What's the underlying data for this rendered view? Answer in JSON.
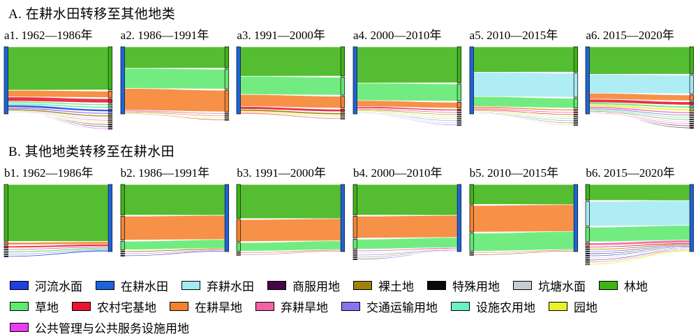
{
  "figure": {
    "section_a": {
      "title": "A. 在耕水田转移至其他地类"
    },
    "section_b": {
      "title": "B. 其他地类转移至在耕水田"
    },
    "legend": {
      "rows": [
        [
          {
            "label": "河流水面",
            "color": "#1F3FDE"
          },
          {
            "label": "在耕水田",
            "color": "#1C64D9"
          },
          {
            "label": "弃耕水田",
            "color": "#A4EAF2"
          },
          {
            "label": "商服用地",
            "color": "#470549"
          },
          {
            "label": "裸土地",
            "color": "#9C8208"
          },
          {
            "label": "特殊用地",
            "color": "#0A0A0A"
          },
          {
            "label": "坑塘水面",
            "color": "#C8CDD2"
          },
          {
            "label": "林地",
            "color": "#3CB414"
          }
        ],
        [
          {
            "label": "草地",
            "color": "#5FE96E"
          },
          {
            "label": "农村宅基地",
            "color": "#E91430"
          },
          {
            "label": "在耕旱地",
            "color": "#F5822D"
          },
          {
            "label": "弃耕旱地",
            "color": "#F263A3"
          },
          {
            "label": "交通运输用地",
            "color": "#8973F2"
          },
          {
            "label": "设施农用地",
            "color": "#69F0C3"
          },
          {
            "label": "园地",
            "color": "#E9F227"
          }
        ],
        [
          {
            "label": "公共管理与公共服务设施用地",
            "color": "#E93DF0"
          }
        ]
      ]
    }
  },
  "chart_data": [
    {
      "id": "a1",
      "type": "sankey",
      "title": "a1. 1962—1986年",
      "direction": "paddy_to_others",
      "source": "在耕水田",
      "unit": "percent_of_transfer",
      "flows": [
        {
          "target": "林地",
          "value": 65
        },
        {
          "target": "在耕旱地",
          "value": 10
        },
        {
          "target": "农村宅基地",
          "value": 6.5
        },
        {
          "target": "草地",
          "value": 2.5
        },
        {
          "target": "设施农用地",
          "value": 3
        },
        {
          "target": "河流水面",
          "value": 3.5
        },
        {
          "target": "交通运输用地",
          "value": 2.5
        },
        {
          "target": "裸土地",
          "value": 2.5
        },
        {
          "target": "坑塘水面",
          "value": 1.5
        },
        {
          "target": "弃耕旱地",
          "value": 1
        },
        {
          "target": "园地",
          "value": 0.8
        },
        {
          "target": "商服用地",
          "value": 0.6
        },
        {
          "target": "特殊用地",
          "value": 0.6
        },
        {
          "target": "公共管理与公共服务设施用地",
          "value": 0.5
        }
      ]
    },
    {
      "id": "a2",
      "type": "sankey",
      "title": "a2. 1986—1991年",
      "direction": "paddy_to_others",
      "source": "在耕水田",
      "unit": "percent_of_transfer",
      "flows": [
        {
          "target": "林地",
          "value": 32
        },
        {
          "target": "草地",
          "value": 30
        },
        {
          "target": "在耕旱地",
          "value": 32.5
        },
        {
          "target": "弃耕旱地",
          "value": 2
        },
        {
          "target": "裸土地",
          "value": 1.5
        },
        {
          "target": "园地",
          "value": 1
        },
        {
          "target": "农村宅基地",
          "value": 1
        }
      ]
    },
    {
      "id": "a3",
      "type": "sankey",
      "title": "a3. 1991—2000年",
      "direction": "paddy_to_others",
      "source": "在耕水田",
      "unit": "percent_of_transfer",
      "flows": [
        {
          "target": "林地",
          "value": 44
        },
        {
          "target": "草地",
          "value": 27
        },
        {
          "target": "在耕旱地",
          "value": 18
        },
        {
          "target": "农村宅基地",
          "value": 4
        },
        {
          "target": "裸土地",
          "value": 3
        },
        {
          "target": "园地",
          "value": 2
        },
        {
          "target": "弃耕旱地",
          "value": 2
        }
      ]
    },
    {
      "id": "a4",
      "type": "sankey",
      "title": "a4. 2000—2010年",
      "direction": "paddy_to_others",
      "source": "在耕水田",
      "unit": "percent_of_transfer",
      "flows": [
        {
          "target": "林地",
          "value": 54
        },
        {
          "target": "草地",
          "value": 26
        },
        {
          "target": "在耕旱地",
          "value": 9
        },
        {
          "target": "农村宅基地",
          "value": 2.5
        },
        {
          "target": "弃耕旱地",
          "value": 2
        },
        {
          "target": "裸土地",
          "value": 1.5
        },
        {
          "target": "园地",
          "value": 1.5
        },
        {
          "target": "坑塘水面",
          "value": 1
        },
        {
          "target": "交通运输用地",
          "value": 1
        },
        {
          "target": "设施农用地",
          "value": 0.8
        },
        {
          "target": "公共管理与公共服务设施用地",
          "value": 0.7
        }
      ]
    },
    {
      "id": "a5",
      "type": "sankey",
      "title": "a5. 2010—2015年",
      "direction": "paddy_to_others",
      "source": "在耕水田",
      "unit": "percent_of_transfer",
      "flows": [
        {
          "target": "林地",
          "value": 38
        },
        {
          "target": "弃耕水田",
          "value": 36
        },
        {
          "target": "草地",
          "value": 15
        },
        {
          "target": "在耕旱地",
          "value": 2.5
        },
        {
          "target": "弃耕旱地",
          "value": 2
        },
        {
          "target": "农村宅基地",
          "value": 1.5
        },
        {
          "target": "园地",
          "value": 1.5
        },
        {
          "target": "设施农用地",
          "value": 1
        },
        {
          "target": "交通运输用地",
          "value": 1
        },
        {
          "target": "裸土地",
          "value": 0.8
        },
        {
          "target": "坑塘水面",
          "value": 0.7
        }
      ]
    },
    {
      "id": "a6",
      "type": "sankey",
      "title": "a6. 2015—2020年",
      "direction": "paddy_to_others",
      "source": "在耕水田",
      "unit": "percent_of_transfer",
      "flows": [
        {
          "target": "林地",
          "value": 41
        },
        {
          "target": "弃耕水田",
          "value": 28
        },
        {
          "target": "在耕旱地",
          "value": 9
        },
        {
          "target": "农村宅基地",
          "value": 5
        },
        {
          "target": "草地",
          "value": 3
        },
        {
          "target": "园地",
          "value": 3
        },
        {
          "target": "弃耕旱地",
          "value": 2.5
        },
        {
          "target": "交通运输用地",
          "value": 2
        },
        {
          "target": "设施农用地",
          "value": 2
        },
        {
          "target": "裸土地",
          "value": 1.5
        },
        {
          "target": "坑塘水面",
          "value": 1
        },
        {
          "target": "公共管理与公共服务设施用地",
          "value": 1
        },
        {
          "target": "商服用地",
          "value": 0.5
        },
        {
          "target": "特殊用地",
          "value": 0.5
        }
      ]
    },
    {
      "id": "b1",
      "type": "sankey",
      "title": "b1. 1962—1986年",
      "direction": "others_to_paddy",
      "target": "在耕水田",
      "unit": "percent_of_transfer",
      "flows": [
        {
          "source": "林地",
          "value": 85
        },
        {
          "source": "在耕旱地",
          "value": 4
        },
        {
          "source": "农村宅基地",
          "value": 3
        },
        {
          "source": "弃耕旱地",
          "value": 2
        },
        {
          "source": "草地",
          "value": 2.5
        },
        {
          "source": "交通运输用地",
          "value": 1.5
        },
        {
          "source": "河流水面",
          "value": 2
        }
      ]
    },
    {
      "id": "b2",
      "type": "sankey",
      "title": "b2. 1986—1991年",
      "direction": "others_to_paddy",
      "target": "在耕水田",
      "unit": "percent_of_transfer",
      "flows": [
        {
          "source": "林地",
          "value": 46
        },
        {
          "source": "在耕旱地",
          "value": 36
        },
        {
          "source": "草地",
          "value": 13
        },
        {
          "source": "裸土地",
          "value": 2
        },
        {
          "source": "弃耕旱地",
          "value": 1.5
        },
        {
          "source": "河流水面",
          "value": 1.5
        }
      ]
    },
    {
      "id": "b3",
      "type": "sankey",
      "title": "b3. 1991—2000年",
      "direction": "others_to_paddy",
      "target": "在耕水田",
      "unit": "percent_of_transfer",
      "flows": [
        {
          "source": "林地",
          "value": 51
        },
        {
          "source": "在耕旱地",
          "value": 33
        },
        {
          "source": "草地",
          "value": 13
        },
        {
          "source": "裸土地",
          "value": 1.5
        },
        {
          "source": "弃耕旱地",
          "value": 1.5
        }
      ]
    },
    {
      "id": "b4",
      "type": "sankey",
      "title": "b4. 2000—2010年",
      "direction": "others_to_paddy",
      "target": "在耕水田",
      "unit": "percent_of_transfer",
      "flows": [
        {
          "source": "林地",
          "value": 46
        },
        {
          "source": "在耕旱地",
          "value": 33
        },
        {
          "source": "草地",
          "value": 15
        },
        {
          "source": "弃耕旱地",
          "value": 2
        },
        {
          "source": "坑塘水面",
          "value": 1
        },
        {
          "source": "交通运输用地",
          "value": 1.5
        },
        {
          "source": "裸土地",
          "value": 1
        },
        {
          "source": "河流水面",
          "value": 0.5
        }
      ]
    },
    {
      "id": "b5",
      "type": "sankey",
      "title": "b5. 2010—2015年",
      "direction": "others_to_paddy",
      "target": "在耕水田",
      "unit": "percent_of_transfer",
      "flows": [
        {
          "source": "林地",
          "value": 30
        },
        {
          "source": "在耕旱地",
          "value": 40
        },
        {
          "source": "草地",
          "value": 27
        },
        {
          "source": "弃耕旱地",
          "value": 1.5
        },
        {
          "source": "裸土地",
          "value": 1.5
        }
      ]
    },
    {
      "id": "b6",
      "type": "sankey",
      "title": "b6. 2015—2020年",
      "direction": "others_to_paddy",
      "target": "在耕水田",
      "unit": "percent_of_transfer",
      "flows": [
        {
          "source": "林地",
          "value": 24
        },
        {
          "source": "弃耕水田",
          "value": 37
        },
        {
          "source": "草地",
          "value": 22
        },
        {
          "source": "弃耕旱地",
          "value": 4
        },
        {
          "source": "农村宅基地",
          "value": 2
        },
        {
          "source": "裸土地",
          "value": 2
        },
        {
          "source": "交通运输用地",
          "value": 2
        },
        {
          "source": "特殊用地",
          "value": 1
        },
        {
          "source": "河流水面",
          "value": 1
        },
        {
          "source": "坑塘水面",
          "value": 1
        },
        {
          "source": "商服用地",
          "value": 1
        },
        {
          "source": "公共管理与公共服务设施用地",
          "value": 1
        },
        {
          "source": "园地",
          "value": 2
        }
      ]
    }
  ]
}
